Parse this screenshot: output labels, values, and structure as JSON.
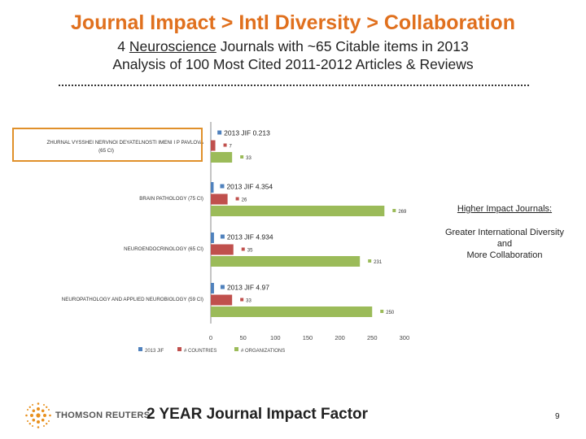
{
  "header": {
    "title": "Journal Impact > Intl Diversity > Collaboration",
    "subtitle_prefix": "4 ",
    "subtitle_underlined": "Neuroscience",
    "subtitle_suffix": " Journals with ~65 Citable items in 2013",
    "subtitle_line2": "Analysis of 100 Most Cited 2011-2012 Articles & Reviews"
  },
  "callout": {
    "line1": "Higher Impact Journals:",
    "line2": "Greater International Diversity",
    "line3": "and",
    "line4": "More Collaboration"
  },
  "footer": {
    "title": "2 YEAR Journal Impact Factor",
    "page_number": "9",
    "logo_text": "THOMSON REUTERS"
  },
  "colors": {
    "title": "#e0701e",
    "jif": "#4f81bd",
    "countries": "#c0504d",
    "organizations": "#9bbb59",
    "highlight": "#e0902a"
  },
  "chart_data": {
    "type": "bar",
    "orientation": "horizontal",
    "categories": [
      {
        "name": "ZHURNAL VYSSHEI NERVNOI DEYATELNOSTI IMENI I P PAVLOVA",
        "ci": "(65 CI)",
        "jif_label": "2013 JIF 0.213"
      },
      {
        "name": "BRAIN PATHOLOGY",
        "ci": "(75 CI)",
        "jif_label": "2013 JIF 4.354"
      },
      {
        "name": "NEUROENDOCRINOLOGY",
        "ci": "(65 CI)",
        "jif_label": "2013 JIF 4.934"
      },
      {
        "name": "NEUROPATHOLOGY AND APPLIED NEUROBIOLOGY",
        "ci": "(59 CI)",
        "jif_label": "2013 JIF 4.97"
      }
    ],
    "series": [
      {
        "name": "2013 JIF",
        "values": [
          0.213,
          4.354,
          4.934,
          4.97
        ]
      },
      {
        "name": "# COUNTRIES",
        "values": [
          7,
          26,
          35,
          33
        ]
      },
      {
        "name": "# ORGANIZATIONS",
        "values": [
          33,
          269,
          231,
          250
        ]
      }
    ],
    "xlim": [
      0,
      300
    ],
    "xticks": [
      "0",
      "50",
      "100",
      "150",
      "200",
      "250",
      "300"
    ],
    "legend_position": "bottom"
  }
}
